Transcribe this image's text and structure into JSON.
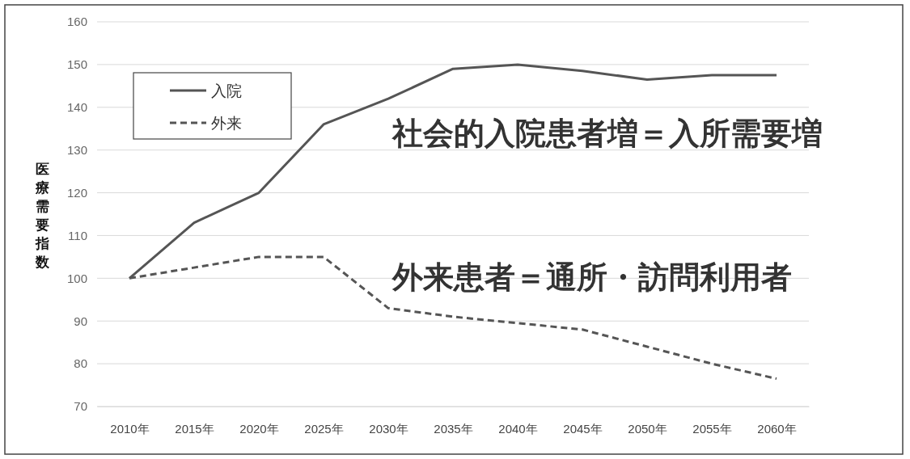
{
  "chart_data": {
    "type": "line",
    "ylabel": "医療需要指数",
    "categories": [
      "2010年",
      "2015年",
      "2020年",
      "2025年",
      "2030年",
      "2035年",
      "2040年",
      "2045年",
      "2050年",
      "2055年",
      "2060年"
    ],
    "series": [
      {
        "name": "入院",
        "color": "#555555",
        "line_style": "solid",
        "values": [
          100,
          113,
          120,
          136,
          142,
          149,
          150,
          148.5,
          146.5,
          147.5,
          147.5
        ]
      },
      {
        "name": "外来",
        "color": "#555555",
        "line_style": "dashed",
        "values": [
          100,
          102.5,
          105,
          105,
          93,
          91,
          89.5,
          88,
          84,
          80,
          76.5
        ]
      }
    ],
    "ylim": [
      70,
      160
    ],
    "yticks": [
      70,
      80,
      90,
      100,
      110,
      120,
      130,
      140,
      150,
      160
    ],
    "grid": "y",
    "legend": "top left",
    "marker": "none",
    "annotations": [
      "社会的入院患者増＝入所需要増",
      "外来患者＝通所・訪問利用者"
    ]
  }
}
